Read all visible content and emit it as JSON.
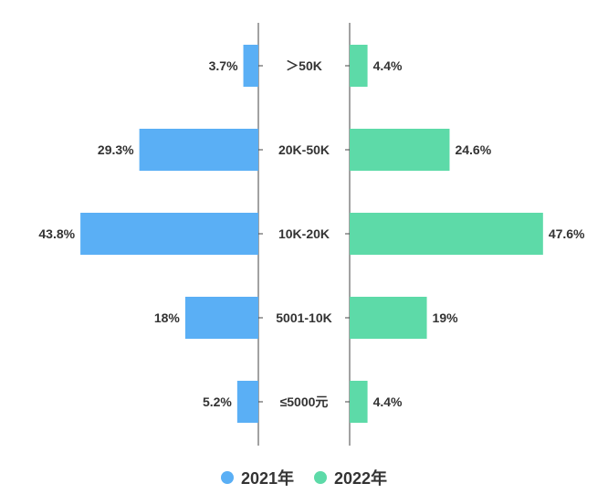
{
  "chart_data": {
    "type": "bar",
    "orientation": "horizontal-butterfly",
    "categories": [
      "＞50K",
      "20K-50K",
      "10K-20K",
      "5001-10K",
      "≤5000元"
    ],
    "series": [
      {
        "name": "2021年",
        "values": [
          3.7,
          29.3,
          43.8,
          18,
          5.2
        ],
        "labels": [
          "3.7%",
          "29.3%",
          "43.8%",
          "18%",
          "5.2%"
        ],
        "color": "#5aaff5",
        "side": "left"
      },
      {
        "name": "2022年",
        "values": [
          4.4,
          24.6,
          47.6,
          19,
          4.4
        ],
        "labels": [
          "4.4%",
          "24.6%",
          "47.6%",
          "19%",
          "4.4%"
        ],
        "color": "#5ddaa8",
        "side": "right"
      }
    ],
    "unit": "%",
    "grid": false,
    "legend_position": "bottom-center"
  }
}
